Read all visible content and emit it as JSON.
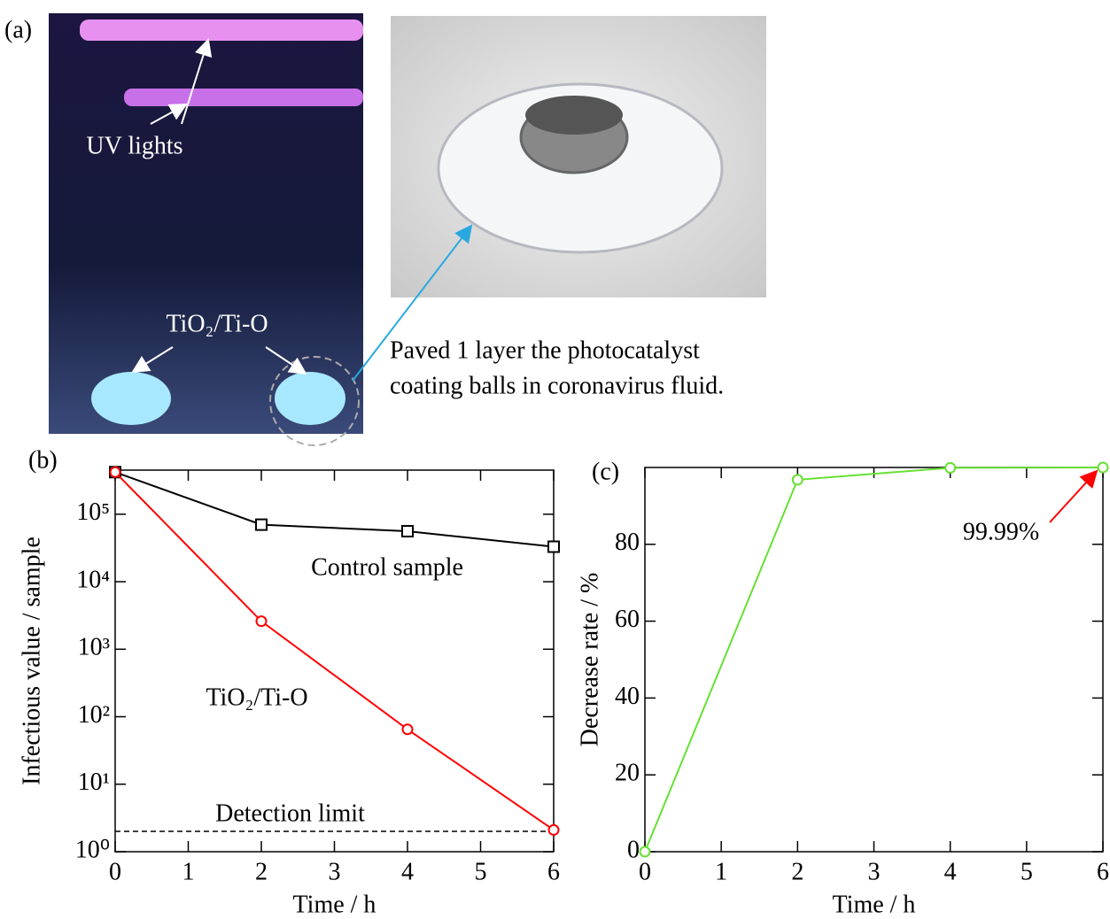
{
  "figure": {
    "panel_label": "(a)",
    "uv_label": "UV lights",
    "sample_label": "TiO₂/Ti-O",
    "caption_lines": [
      "Paved 1 layer the photocatalyst",
      "coating balls in coronavirus fluid."
    ]
  },
  "chart_data": [
    {
      "type": "line",
      "panel_label": "(b)",
      "x_label": "Time / h",
      "y_label": "Infectious value / sample",
      "yscale": "log",
      "xlim": [
        0,
        6
      ],
      "ylim": [
        1,
        450000
      ],
      "xticks": [
        0,
        1,
        2,
        3,
        4,
        5,
        6
      ],
      "yticks": [
        {
          "value": 1,
          "label": "10⁰"
        },
        {
          "value": 10,
          "label": "10¹"
        },
        {
          "value": 100,
          "label": "10²"
        },
        {
          "value": 1000,
          "label": "10³"
        },
        {
          "value": 10000,
          "label": "10⁴"
        },
        {
          "value": 100000,
          "label": "10⁵"
        }
      ],
      "x": [
        0,
        2,
        4,
        6
      ],
      "series": [
        {
          "name": "Control sample",
          "color": "#000000",
          "marker": "square",
          "values": [
            420000,
            70000,
            56000,
            33000
          ]
        },
        {
          "name": "TiO₂/Ti-O",
          "color": "#ff0000",
          "marker": "circle",
          "values": [
            420000,
            2600,
            65,
            2.1
          ]
        }
      ],
      "hline": {
        "value": 2,
        "label": "Detection limit"
      }
    },
    {
      "type": "line",
      "panel_label": "(c)",
      "x_label": "Time / h",
      "y_label": "Decrease rate / %",
      "xlim": [
        0,
        6
      ],
      "ylim": [
        0,
        100
      ],
      "xticks": [
        0,
        1,
        2,
        3,
        4,
        5,
        6
      ],
      "yticks": [
        0,
        20,
        40,
        60,
        80
      ],
      "x": [
        0,
        2,
        4,
        6
      ],
      "series": [
        {
          "color": "#66e033",
          "marker": "circle",
          "values": [
            0,
            96.8,
            99.9,
            99.99
          ]
        }
      ],
      "annotations": [
        "99.99%"
      ]
    }
  ]
}
